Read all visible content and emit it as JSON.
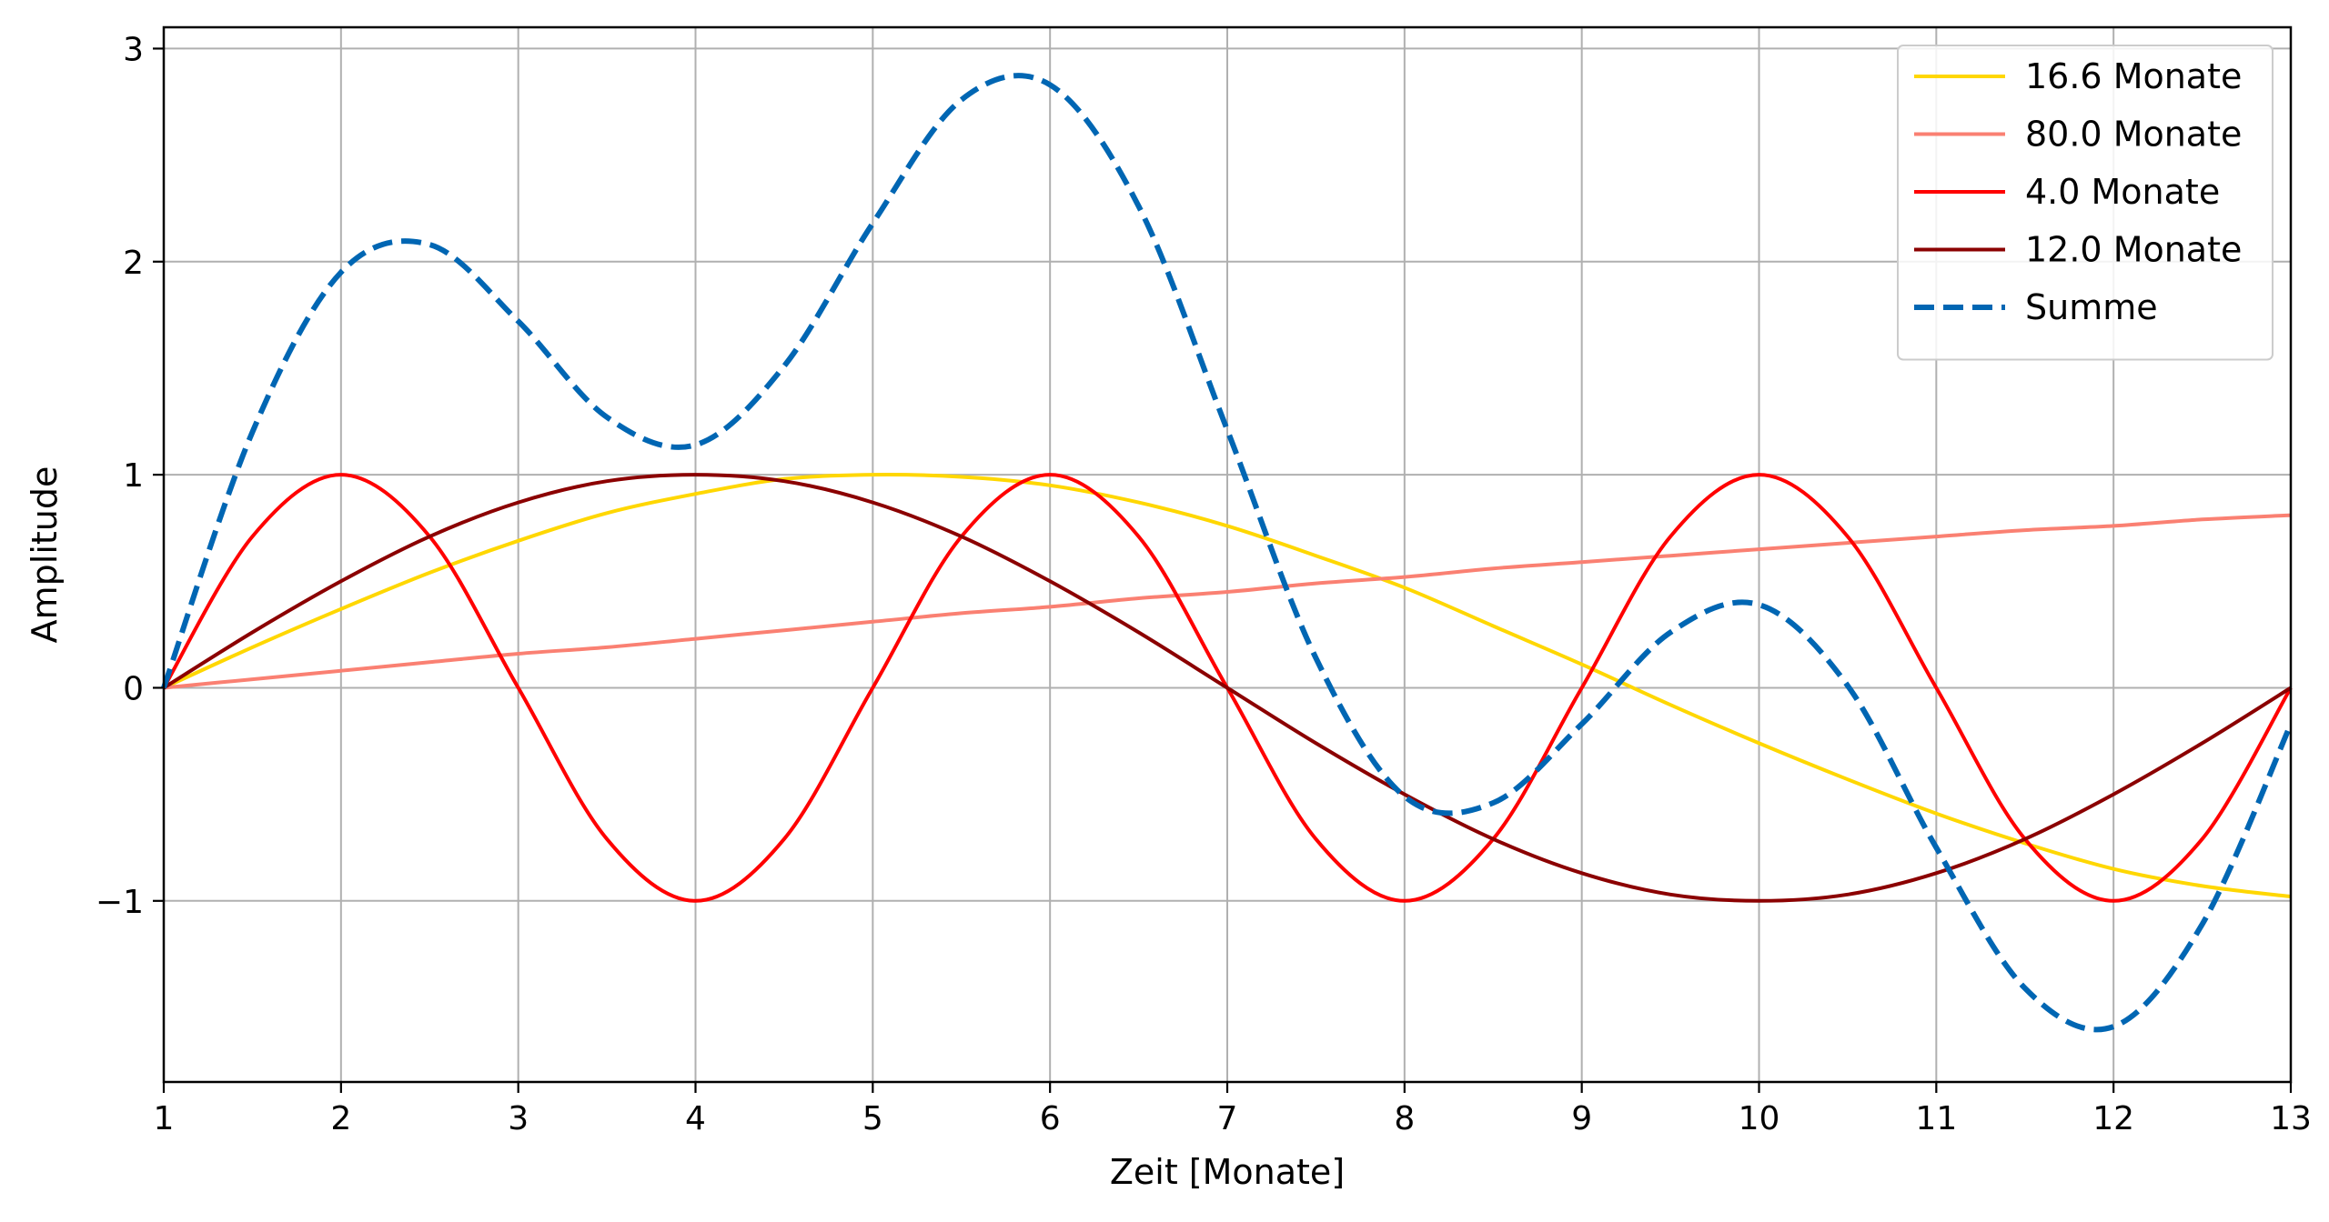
{
  "chart_data": {
    "type": "line",
    "title": "",
    "xlabel": "Zeit [Monate]",
    "ylabel": "Amplitude",
    "xlim": [
      1,
      13
    ],
    "ylim": [
      -1.85,
      3.1
    ],
    "xticks": [
      1,
      2,
      3,
      4,
      5,
      6,
      7,
      8,
      9,
      10,
      11,
      12,
      13
    ],
    "yticks": [
      -1,
      0,
      1,
      2,
      3
    ],
    "ytick_labels": [
      "−1",
      "0",
      "1",
      "2",
      "3"
    ],
    "grid": true,
    "legend_position": "top-right",
    "x": [
      1.0,
      1.5,
      2.0,
      2.5,
      3.0,
      3.5,
      4.0,
      4.5,
      5.0,
      5.5,
      6.0,
      6.5,
      7.0,
      7.5,
      8.0,
      8.5,
      9.0,
      9.5,
      10.0,
      10.5,
      11.0,
      11.5,
      12.0,
      12.5,
      13.0
    ],
    "series": [
      {
        "name": "16.6 Monate",
        "color": "#FFD700",
        "style": "solid",
        "values": [
          0.0,
          0.19,
          0.37,
          0.54,
          0.69,
          0.82,
          0.91,
          0.98,
          1.0,
          0.99,
          0.95,
          0.87,
          0.76,
          0.62,
          0.47,
          0.29,
          0.11,
          -0.08,
          -0.26,
          -0.43,
          -0.59,
          -0.73,
          -0.85,
          -0.93,
          -0.98
        ]
      },
      {
        "name": "80.0 Monate",
        "color": "#FA8072",
        "style": "solid",
        "values": [
          0.0,
          0.04,
          0.08,
          0.12,
          0.16,
          0.19,
          0.23,
          0.27,
          0.31,
          0.35,
          0.38,
          0.42,
          0.45,
          0.49,
          0.52,
          0.56,
          0.59,
          0.62,
          0.65,
          0.68,
          0.71,
          0.74,
          0.76,
          0.79,
          0.81
        ]
      },
      {
        "name": "4.0 Monate",
        "color": "#FF0000",
        "style": "solid",
        "values": [
          0.0,
          0.71,
          1.0,
          0.71,
          0.0,
          -0.71,
          -1.0,
          -0.71,
          0.0,
          0.71,
          1.0,
          0.71,
          0.0,
          -0.71,
          -1.0,
          -0.71,
          0.0,
          0.71,
          1.0,
          0.71,
          0.0,
          -0.71,
          -1.0,
          -0.71,
          0.0
        ]
      },
      {
        "name": "12.0 Monate",
        "color": "#8B0000",
        "style": "solid",
        "values": [
          0.0,
          0.26,
          0.5,
          0.71,
          0.87,
          0.97,
          1.0,
          0.97,
          0.87,
          0.71,
          0.5,
          0.26,
          0.0,
          -0.26,
          -0.5,
          -0.71,
          -0.87,
          -0.97,
          -1.0,
          -0.97,
          -0.87,
          -0.71,
          -0.5,
          -0.26,
          0.0
        ]
      },
      {
        "name": "Summe",
        "color": "#0066B3",
        "style": "dashed",
        "values": [
          0.0,
          1.2,
          1.95,
          2.08,
          1.72,
          1.27,
          1.14,
          1.51,
          2.18,
          2.76,
          2.83,
          2.26,
          1.21,
          0.14,
          -0.51,
          -0.54,
          -0.17,
          0.26,
          0.39,
          0.01,
          -0.75,
          -1.41,
          -1.59,
          -1.11,
          -0.17
        ]
      }
    ]
  }
}
